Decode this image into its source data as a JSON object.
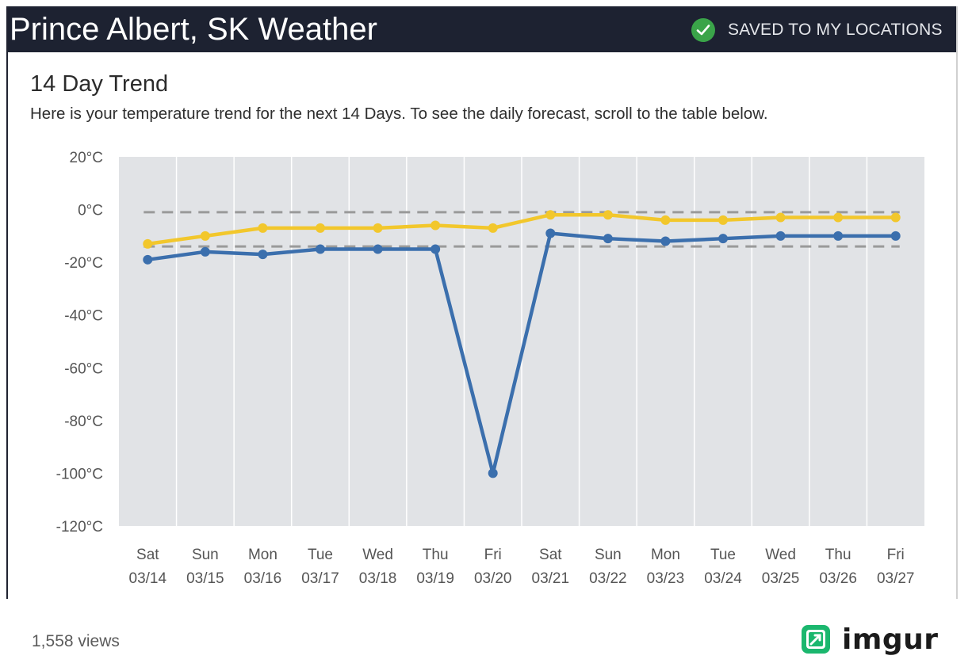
{
  "header": {
    "title": "Prince Albert, SK Weather",
    "saved_label": "SAVED TO MY LOCATIONS"
  },
  "trend": {
    "title": "14 Day Trend",
    "subtitle": "Here is your temperature trend for the next 14 Days. To see the daily forecast, scroll to the table below."
  },
  "chart_data": {
    "type": "line",
    "categories": [
      {
        "day": "Sat",
        "date": "03/14"
      },
      {
        "day": "Sun",
        "date": "03/15"
      },
      {
        "day": "Mon",
        "date": "03/16"
      },
      {
        "day": "Tue",
        "date": "03/17"
      },
      {
        "day": "Wed",
        "date": "03/18"
      },
      {
        "day": "Thu",
        "date": "03/19"
      },
      {
        "day": "Fri",
        "date": "03/20"
      },
      {
        "day": "Sat",
        "date": "03/21"
      },
      {
        "day": "Sun",
        "date": "03/22"
      },
      {
        "day": "Mon",
        "date": "03/23"
      },
      {
        "day": "Tue",
        "date": "03/24"
      },
      {
        "day": "Wed",
        "date": "03/25"
      },
      {
        "day": "Thu",
        "date": "03/26"
      },
      {
        "day": "Fri",
        "date": "03/27"
      }
    ],
    "series": [
      {
        "color": "#f2c72c",
        "values": [
          -13,
          -10,
          -7,
          -7,
          -7,
          -6,
          -7,
          -2,
          -2,
          -4,
          -4,
          -3,
          -3,
          -3
        ]
      },
      {
        "color": "#3b6fad",
        "values": [
          -19,
          -16,
          -17,
          -15,
          -15,
          -15,
          -100,
          -9,
          -11,
          -12,
          -11,
          -10,
          -10,
          -10
        ]
      }
    ],
    "reference_lines": [
      -1,
      -14
    ],
    "reference_color": "#9a9a9a",
    "y_ticks": [
      "20°C",
      "0°C",
      "-20°C",
      "-40°C",
      "-60°C",
      "-80°C",
      "-100°C",
      "-120°C"
    ],
    "ylim": [
      -120,
      20
    ],
    "grid": "vertical",
    "plot_background": "#e1e3e6"
  },
  "footer": {
    "views": "1,558 views",
    "brand": "imgur"
  },
  "colors": {
    "header_bg": "#1d2231",
    "check_green": "#3aa449",
    "imgur_green": "#1bb76e"
  }
}
